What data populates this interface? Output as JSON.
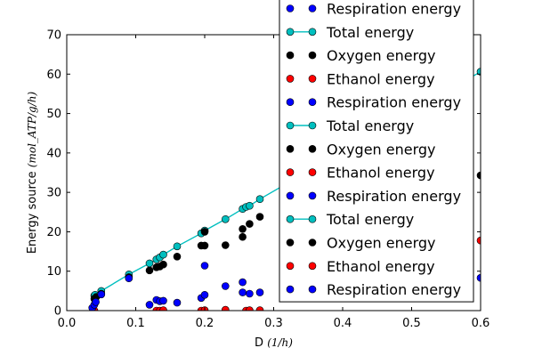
{
  "chart_data": {
    "type": "scatter",
    "title": "",
    "xlabel": "D",
    "xlabel_unit": "(1/h)",
    "ylabel": "Energy source",
    "ylabel_unit": "(mol_ATP/g/h)",
    "xlim": [
      0.0,
      0.6
    ],
    "ylim": [
      0,
      70
    ],
    "xticks": [
      0.0,
      0.1,
      0.2,
      0.3,
      0.4,
      0.5,
      0.6
    ],
    "xtick_labels": [
      "0.0",
      "0.1",
      "0.2",
      "0.3",
      "0.4",
      "0.5",
      "0.6"
    ],
    "yticks": [
      0,
      10,
      20,
      30,
      40,
      50,
      60,
      70
    ],
    "ytick_labels": [
      "0",
      "10",
      "20",
      "30",
      "40",
      "50",
      "60",
      "70"
    ],
    "grid": false,
    "legend_position": "top-right",
    "colors": {
      "total": "#00bfbf",
      "oxygen": "#000000",
      "ethanol": "#ff0000",
      "respiration": "#0000ff"
    },
    "series": [
      {
        "name": "Total energy",
        "style": "line-marker",
        "color": "#00bfbf",
        "points": [
          [
            0.04,
            3.8
          ],
          [
            0.041,
            4.0
          ],
          [
            0.05,
            5.0
          ],
          [
            0.09,
            9.2
          ],
          [
            0.12,
            12.0
          ],
          [
            0.13,
            13.0
          ],
          [
            0.135,
            13.5
          ],
          [
            0.14,
            14.2
          ],
          [
            0.16,
            16.3
          ],
          [
            0.195,
            19.6
          ],
          [
            0.2,
            20.3
          ],
          [
            0.23,
            23.2
          ],
          [
            0.255,
            25.8
          ],
          [
            0.26,
            26.3
          ],
          [
            0.265,
            26.6
          ],
          [
            0.28,
            28.3
          ],
          [
            0.6,
            60.6
          ]
        ]
      },
      {
        "name": "Oxygen energy",
        "style": "marker",
        "color": "#000000",
        "points": [
          [
            0.04,
            3.0
          ],
          [
            0.043,
            3.5
          ],
          [
            0.05,
            4.3
          ],
          [
            0.09,
            8.5
          ],
          [
            0.12,
            10.2
          ],
          [
            0.13,
            11.0
          ],
          [
            0.135,
            11.2
          ],
          [
            0.14,
            11.7
          ],
          [
            0.16,
            13.7
          ],
          [
            0.195,
            16.5
          ],
          [
            0.2,
            16.5
          ],
          [
            0.2,
            20.0
          ],
          [
            0.23,
            16.6
          ],
          [
            0.255,
            18.7
          ],
          [
            0.255,
            20.7
          ],
          [
            0.265,
            22.0
          ],
          [
            0.28,
            23.8
          ],
          [
            0.6,
            34.3
          ]
        ]
      },
      {
        "name": "Ethanol energy",
        "style": "marker",
        "color": "#ff0000",
        "points": [
          [
            0.04,
            0.0
          ],
          [
            0.13,
            0.0
          ],
          [
            0.135,
            0.0
          ],
          [
            0.14,
            0.1
          ],
          [
            0.195,
            0.0
          ],
          [
            0.2,
            0.1
          ],
          [
            0.23,
            0.2
          ],
          [
            0.26,
            0.0
          ],
          [
            0.265,
            0.1
          ],
          [
            0.28,
            0.1
          ],
          [
            0.6,
            17.8
          ]
        ]
      },
      {
        "name": "Respiration energy",
        "style": "marker",
        "color": "#0000ff",
        "points": [
          [
            0.037,
            0.7
          ],
          [
            0.04,
            1.5
          ],
          [
            0.042,
            2.2
          ],
          [
            0.05,
            4.1
          ],
          [
            0.09,
            8.2
          ],
          [
            0.12,
            1.5
          ],
          [
            0.13,
            2.7
          ],
          [
            0.135,
            2.4
          ],
          [
            0.14,
            2.5
          ],
          [
            0.16,
            2.0
          ],
          [
            0.195,
            3.2
          ],
          [
            0.2,
            4.0
          ],
          [
            0.2,
            11.4
          ],
          [
            0.23,
            6.2
          ],
          [
            0.255,
            7.2
          ],
          [
            0.255,
            4.6
          ],
          [
            0.265,
            4.3
          ],
          [
            0.28,
            4.6
          ],
          [
            0.6,
            8.3
          ]
        ]
      }
    ],
    "legend_entries": [
      {
        "label": "Respiration energy",
        "series": "respiration",
        "style": "marker"
      },
      {
        "label": "Total energy",
        "series": "total",
        "style": "line-marker"
      },
      {
        "label": "Oxygen energy",
        "series": "oxygen",
        "style": "marker"
      },
      {
        "label": "Ethanol energy",
        "series": "ethanol",
        "style": "marker"
      },
      {
        "label": "Respiration energy",
        "series": "respiration",
        "style": "marker"
      },
      {
        "label": "Total energy",
        "series": "total",
        "style": "line-marker"
      },
      {
        "label": "Oxygen energy",
        "series": "oxygen",
        "style": "marker"
      },
      {
        "label": "Ethanol energy",
        "series": "ethanol",
        "style": "marker"
      },
      {
        "label": "Respiration energy",
        "series": "respiration",
        "style": "marker"
      },
      {
        "label": "Total energy",
        "series": "total",
        "style": "line-marker"
      },
      {
        "label": "Oxygen energy",
        "series": "oxygen",
        "style": "marker"
      },
      {
        "label": "Ethanol energy",
        "series": "ethanol",
        "style": "marker"
      },
      {
        "label": "Respiration energy",
        "series": "respiration",
        "style": "marker"
      }
    ]
  }
}
